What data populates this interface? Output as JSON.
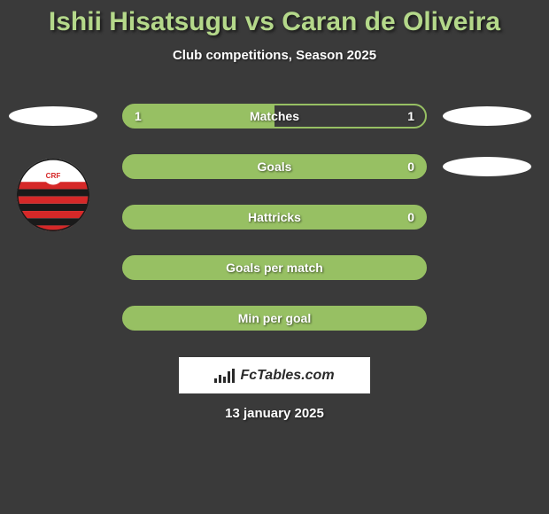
{
  "header": {
    "title": "Ishii Hisatsugu vs Caran de Oliveira",
    "subtitle": "Club competitions, Season 2025"
  },
  "rows": [
    {
      "label": "Matches",
      "left": "1",
      "right": "1",
      "fill": "left",
      "show_left_ellipse": true,
      "show_right_ellipse": true
    },
    {
      "label": "Goals",
      "left": "",
      "right": "0",
      "fill": "full",
      "show_left_ellipse": false,
      "show_right_ellipse": true
    },
    {
      "label": "Hattricks",
      "left": "",
      "right": "0",
      "fill": "full",
      "show_left_ellipse": false,
      "show_right_ellipse": false
    },
    {
      "label": "Goals per match",
      "left": "",
      "right": "",
      "fill": "full",
      "show_left_ellipse": false,
      "show_right_ellipse": false
    },
    {
      "label": "Min per goal",
      "left": "",
      "right": "",
      "fill": "full",
      "show_left_ellipse": false,
      "show_right_ellipse": false
    }
  ],
  "site": {
    "name": "FcTables.com"
  },
  "date": "13 january 2025",
  "colors": {
    "background": "#3a3a3a",
    "accent": "#97c063",
    "title": "#b4d88a",
    "text": "#ffffff",
    "badge_bg": "#ffffff",
    "badge_text": "#2a2a2a"
  },
  "club_badge": {
    "stripes": [
      "#d62828",
      "#1a1a1a"
    ],
    "star_bg": "#ffffff"
  }
}
